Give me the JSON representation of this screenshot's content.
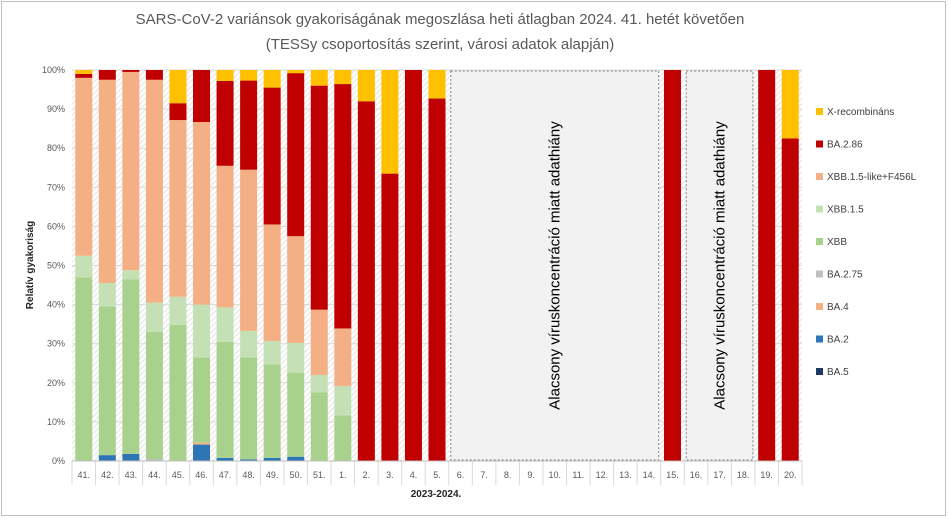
{
  "chart_data": {
    "type": "bar",
    "stacked": true,
    "title": "SARS-CoV-2 variánsok gyakoriságának megoszlása heti átlagban 2024. 41. hetét követően",
    "subtitle": "(TESSy csoportosítás szerint, városi adatok alapján)",
    "xlabel": "2023-2024.",
    "ylabel": "Relatív gyakoriság",
    "ylim": [
      0,
      100
    ],
    "yticks": [
      "0%",
      "10%",
      "20%",
      "30%",
      "40%",
      "50%",
      "60%",
      "70%",
      "80%",
      "90%",
      "100%"
    ],
    "grid": true,
    "legend": "right",
    "categories": [
      "41.",
      "42.",
      "43.",
      "44.",
      "45.",
      "46.",
      "47.",
      "48.",
      "49.",
      "50.",
      "51.",
      "1.",
      "2.",
      "3.",
      "4.",
      "5.",
      "6.",
      "7.",
      "8.",
      "9.",
      "10.",
      "11.",
      "12.",
      "13.",
      "14.",
      "15.",
      "16.",
      "17.",
      "18.",
      "19.",
      "20."
    ],
    "series": [
      {
        "name": "BA.5",
        "color": "#1f3864",
        "values": [
          0,
          0,
          0,
          0,
          0,
          0,
          0,
          0,
          0,
          0,
          0,
          0,
          0,
          0,
          0,
          0,
          null,
          null,
          null,
          null,
          null,
          null,
          null,
          null,
          null,
          0,
          null,
          null,
          null,
          0,
          0
        ]
      },
      {
        "name": "BA.2",
        "color": "#2e75b6",
        "values": [
          0,
          1.5,
          1.8,
          0,
          0,
          4.2,
          0.8,
          0.4,
          0.8,
          1.1,
          0,
          0,
          0,
          0,
          0,
          0,
          null,
          null,
          null,
          null,
          null,
          null,
          null,
          null,
          null,
          0,
          null,
          null,
          null,
          0,
          0
        ]
      },
      {
        "name": "BA.4",
        "color": "#f4b183",
        "values": [
          0,
          0,
          0,
          0,
          0,
          0.5,
          0,
          0,
          0,
          0,
          0,
          0,
          0,
          0,
          0,
          0,
          null,
          null,
          null,
          null,
          null,
          null,
          null,
          null,
          null,
          0,
          null,
          null,
          null,
          0,
          0
        ]
      },
      {
        "name": "BA.2.75",
        "color": "#bfbfbf",
        "values": [
          0,
          0,
          0,
          0.5,
          0,
          0,
          0,
          0,
          0,
          0,
          0,
          0,
          0,
          0,
          0,
          0,
          null,
          null,
          null,
          null,
          null,
          null,
          null,
          null,
          null,
          0,
          null,
          null,
          null,
          0,
          0
        ]
      },
      {
        "name": "XBB",
        "color": "#a9d18e",
        "values": [
          47,
          38,
          44.7,
          32.5,
          34.8,
          21.8,
          29.7,
          26.1,
          23.9,
          21.5,
          17.6,
          11.7,
          0,
          0,
          0,
          0,
          null,
          null,
          null,
          null,
          null,
          null,
          null,
          null,
          null,
          0,
          null,
          null,
          null,
          0,
          0
        ]
      },
      {
        "name": "XBB.1.5",
        "color": "#c5e0b4",
        "values": [
          5.5,
          6,
          2.3,
          7.5,
          7.2,
          13.5,
          8.8,
          6.8,
          6,
          7.6,
          4.4,
          7.5,
          0,
          0,
          0,
          0,
          null,
          null,
          null,
          null,
          null,
          null,
          null,
          null,
          null,
          0,
          null,
          null,
          null,
          0,
          0
        ]
      },
      {
        "name": "XBB.1.5-like+F456L",
        "color": "#f4b084",
        "values": [
          45.5,
          52,
          50.7,
          57,
          45.2,
          46.7,
          36.2,
          41.2,
          29.8,
          27.3,
          16.7,
          14.7,
          0,
          0,
          0,
          0,
          null,
          null,
          null,
          null,
          null,
          null,
          null,
          null,
          null,
          0,
          null,
          null,
          null,
          0,
          0
        ]
      },
      {
        "name": "BA.2.86",
        "color": "#c00000",
        "values": [
          1,
          2.5,
          0.5,
          2.5,
          4.3,
          13.3,
          21.7,
          22.8,
          35,
          41.7,
          57.3,
          62.5,
          92,
          73.5,
          100,
          92.7,
          null,
          null,
          null,
          null,
          null,
          null,
          null,
          null,
          null,
          100,
          null,
          null,
          null,
          100,
          82.5
        ]
      },
      {
        "name": "X-recombináns",
        "color": "#ffc000",
        "values": [
          1,
          0,
          0,
          0,
          8.5,
          0,
          2.8,
          2.7,
          4.5,
          0.8,
          4,
          3.6,
          8,
          26.5,
          0,
          7.3,
          null,
          null,
          null,
          null,
          null,
          null,
          null,
          null,
          null,
          0,
          null,
          null,
          null,
          0,
          17.5
        ]
      }
    ],
    "annotations": [
      {
        "text": "Alacsony víruskoncentráció miatt adathiány",
        "from": "6.",
        "to": "14."
      },
      {
        "text": "Alacsony víruskoncentráció miatt adathiány",
        "from": "16.",
        "to": "18."
      }
    ]
  }
}
